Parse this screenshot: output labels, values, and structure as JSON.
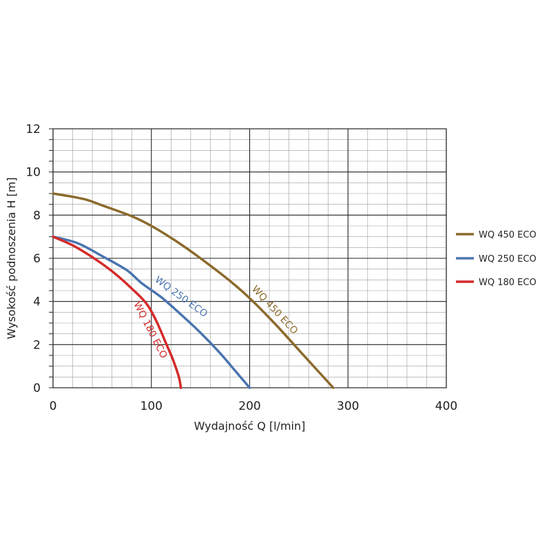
{
  "chart_data": {
    "type": "line",
    "xlabel": "Wydajność Q [l/min]",
    "ylabel": "Wysokość podnoszenia H [m]",
    "xlim": [
      0,
      400
    ],
    "ylim": [
      0,
      12
    ],
    "x_ticks": [
      "0",
      "100",
      "200",
      "300",
      "400"
    ],
    "y_ticks": [
      "0",
      "2",
      "4",
      "6",
      "8",
      "10",
      "12"
    ],
    "grid": true,
    "legend_position": "right",
    "series": [
      {
        "name": "WQ 450 ECO",
        "color": "#8b6a2b",
        "x": [
          0,
          20,
          35,
          50,
          80,
          100,
          125,
          150,
          180,
          200,
          225,
          250,
          270,
          285
        ],
        "y": [
          9.0,
          8.85,
          8.7,
          8.45,
          7.95,
          7.5,
          6.8,
          6.0,
          4.95,
          4.15,
          3.0,
          1.75,
          0.75,
          0.0
        ]
      },
      {
        "name": "WQ 250 ECO",
        "color": "#4a74b0",
        "x": [
          0,
          25,
          50,
          75,
          90,
          110,
          130,
          150,
          170,
          185,
          200
        ],
        "y": [
          7.0,
          6.7,
          6.1,
          5.45,
          4.85,
          4.2,
          3.4,
          2.55,
          1.6,
          0.8,
          0.0
        ]
      },
      {
        "name": "WQ 180 ECO",
        "color": "#d42a2a",
        "x": [
          0,
          20,
          40,
          60,
          80,
          95,
          105,
          115,
          122,
          128,
          130
        ],
        "y": [
          7.0,
          6.6,
          6.05,
          5.4,
          4.6,
          3.9,
          3.1,
          2.05,
          1.3,
          0.5,
          0.0
        ]
      }
    ]
  },
  "curve_labels": [
    "WQ 450 ECO",
    "WQ 250 ECO",
    "WQ 180 ECO"
  ]
}
